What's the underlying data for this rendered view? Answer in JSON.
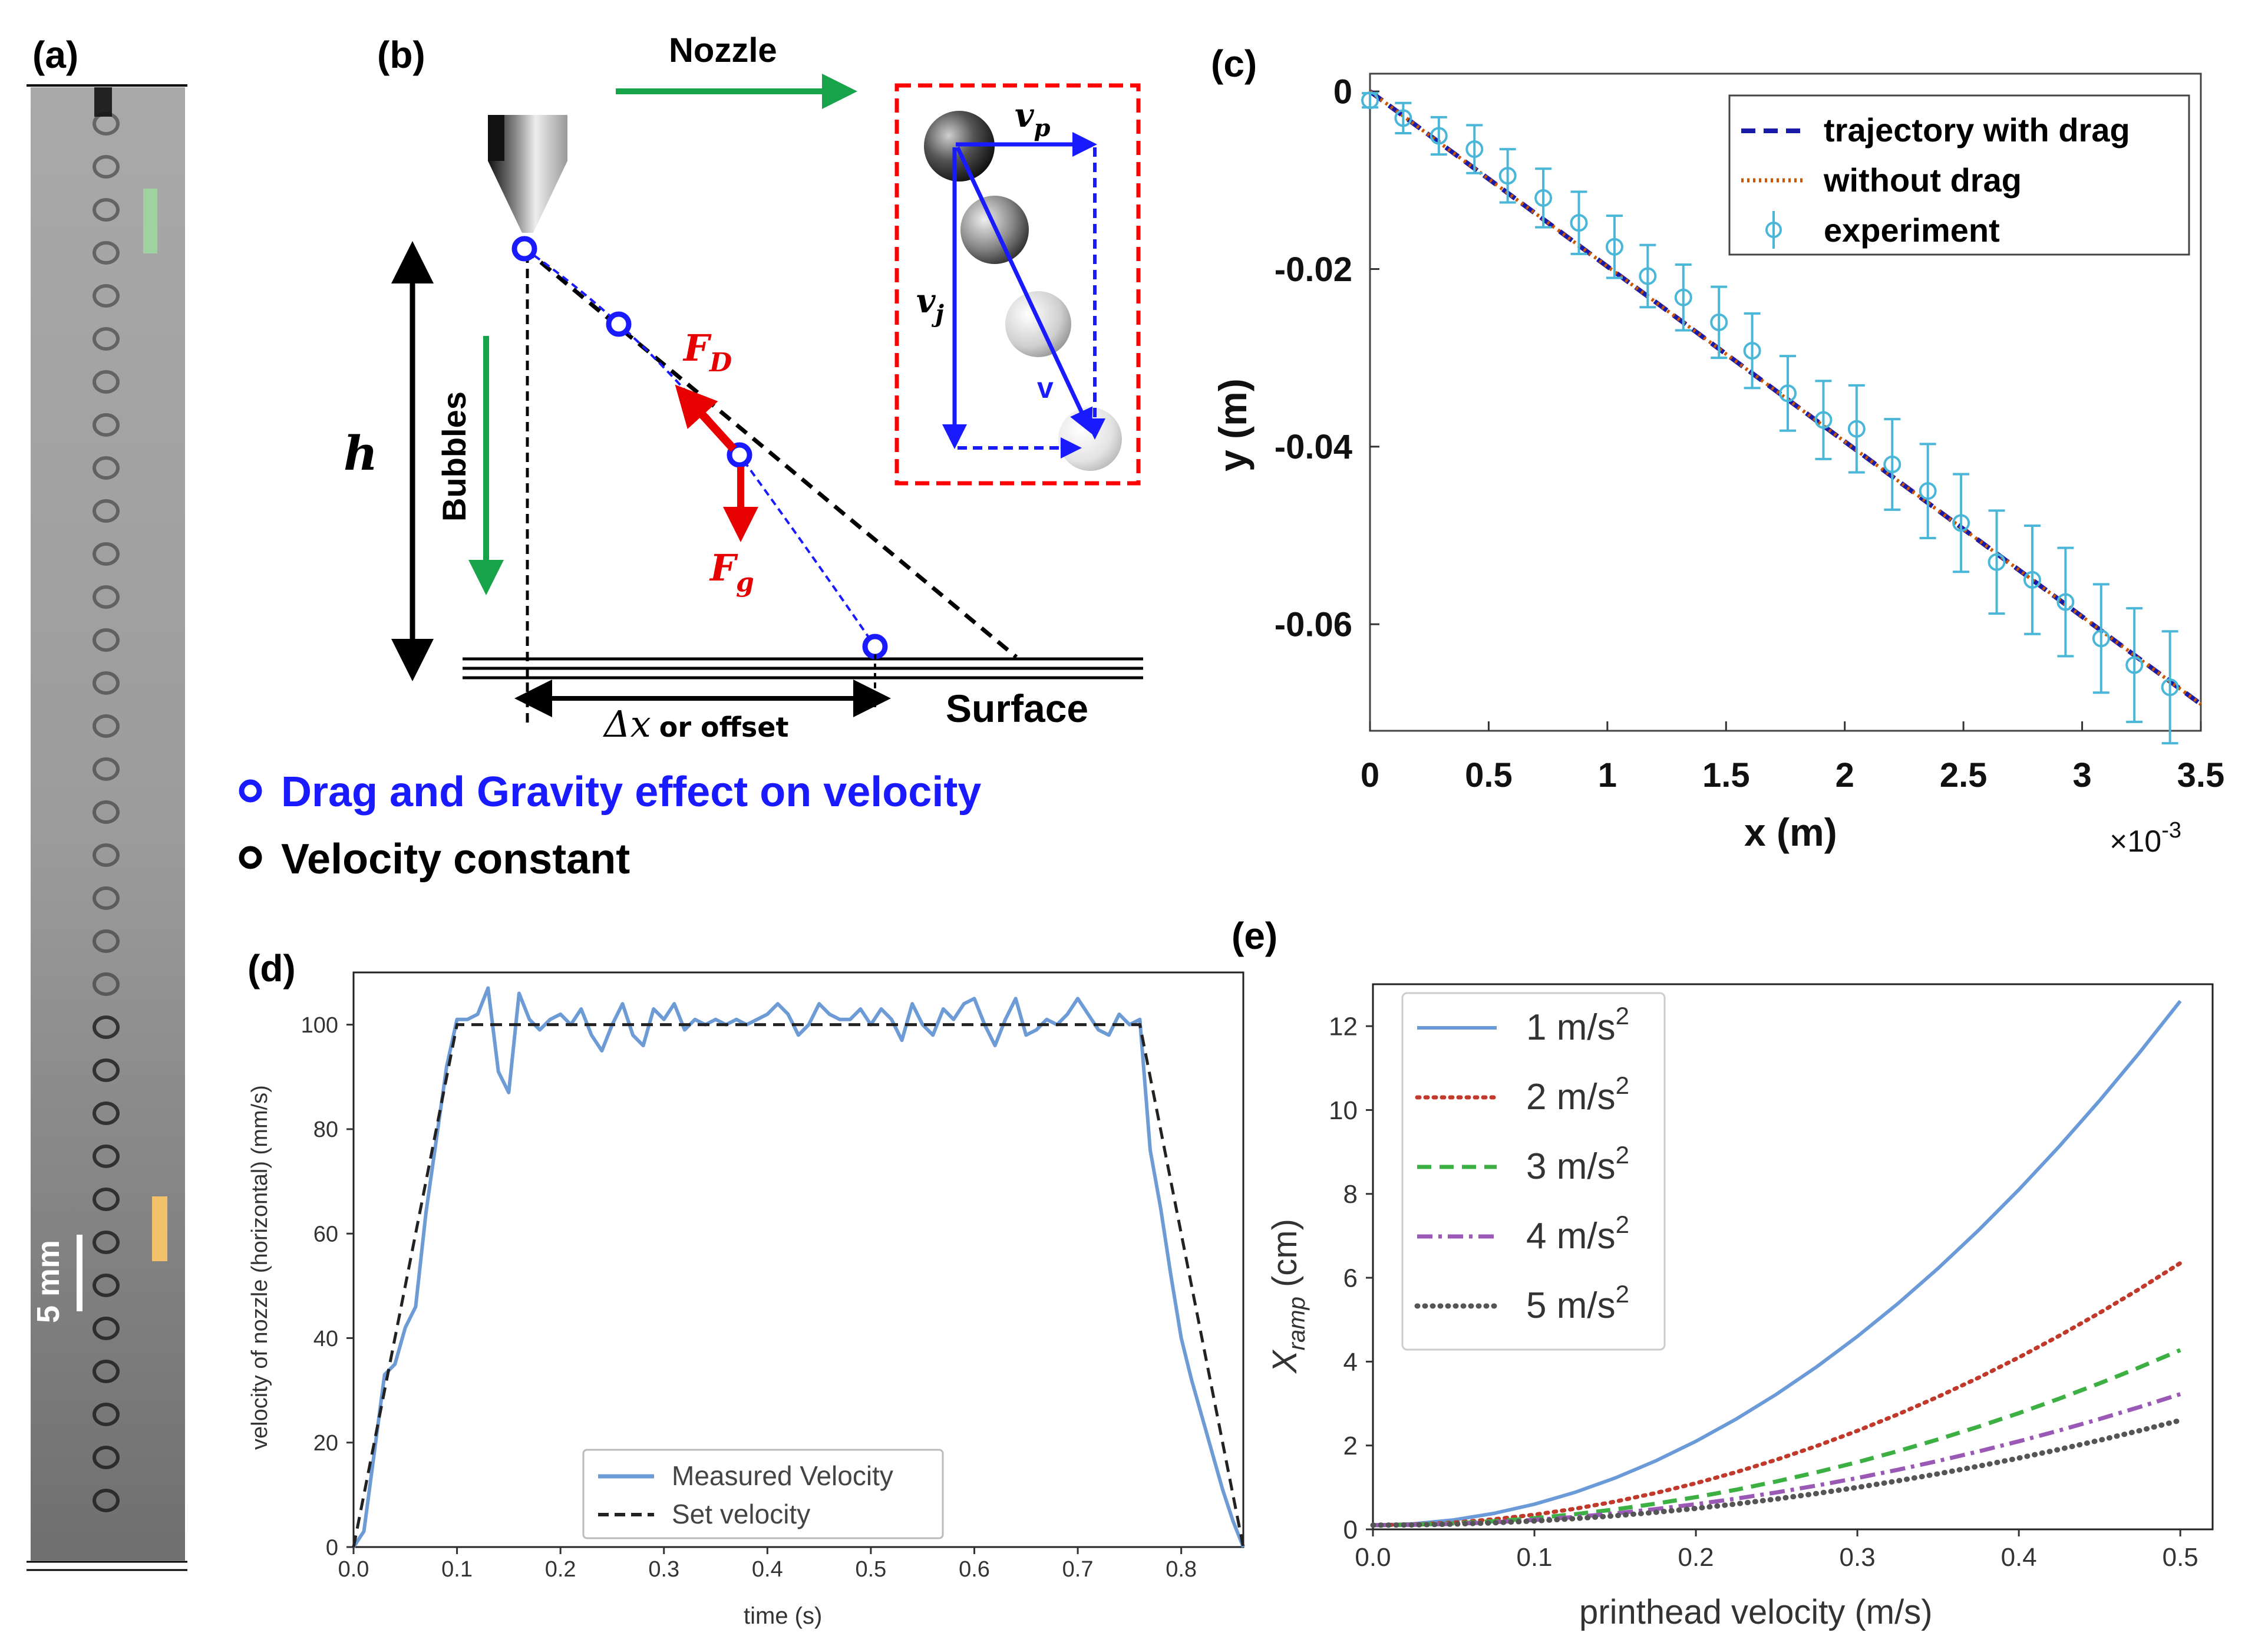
{
  "figure": {
    "panel_labels": [
      "(a)",
      "(b)",
      "(c)",
      "(d)",
      "(e)"
    ]
  },
  "panel_a": {
    "scale_bar_label": "5 mm",
    "bubble_count": 33,
    "colors": {
      "marker_green": "#9fd29f",
      "marker_orange": "#f2c16b",
      "background_gray": "#9c9c9c"
    }
  },
  "panel_b": {
    "nozzle_label": "Nozzle",
    "bubbles_label": "Bubbles",
    "height_label": "h",
    "drag_force_label": "F",
    "drag_force_sub": "D",
    "gravity_force_label": "F",
    "gravity_force_sub": "g",
    "offset_label": "Δx",
    "offset_suffix": "or offset",
    "surface_label": "Surface",
    "vp_label": "v",
    "vp_sub": "p",
    "vj_label": "v",
    "vj_sub": "j",
    "v_label": "v",
    "legend_drag_gravity": "Drag and Gravity effect on velocity",
    "legend_constant": "Velocity constant",
    "colors": {
      "blue": "#1a1aff",
      "red": "#e60000",
      "green": "#16a34a",
      "dashed_red": "#ff0000"
    }
  },
  "chart_data": [
    {
      "id": "c",
      "type": "line",
      "xlabel": "x (m)",
      "ylabel": "y (m)",
      "x_multiplier_label": "×10",
      "x_multiplier_exp": "-3",
      "xlim": [
        0,
        3.5
      ],
      "ylim": [
        -0.072,
        0.002
      ],
      "xticks": [
        0,
        0.5,
        1,
        1.5,
        2,
        2.5,
        3,
        3.5
      ],
      "xtick_labels": [
        "0",
        "0.5",
        "1",
        "1.5",
        "2",
        "2.5",
        "3",
        "3.5"
      ],
      "yticks": [
        0,
        -0.02,
        -0.04,
        -0.06
      ],
      "ytick_labels": [
        "0",
        "-0.02",
        "-0.04",
        "-0.06"
      ],
      "legend": [
        "trajectory with drag",
        "without drag",
        "experiment"
      ],
      "series": [
        {
          "name": "trajectory with drag",
          "style": "dashed",
          "color": "#1a1aa8",
          "x": [
            0,
            3.5
          ],
          "y": [
            0,
            -0.069
          ]
        },
        {
          "name": "without drag",
          "style": "dotted",
          "color": "#cc5500",
          "x": [
            0,
            3.5
          ],
          "y": [
            0,
            -0.069
          ]
        },
        {
          "name": "experiment",
          "style": "errorbar",
          "color": "#4ab6d8",
          "x": [
            0,
            0.14,
            0.29,
            0.44,
            0.58,
            0.73,
            0.88,
            1.03,
            1.17,
            1.32,
            1.47,
            1.61,
            1.76,
            1.91,
            2.05,
            2.2,
            2.35,
            2.49,
            2.64,
            2.79,
            2.93,
            3.08,
            3.22,
            3.37
          ],
          "y": [
            -0.001,
            -0.003,
            -0.005,
            -0.0065,
            -0.0095,
            -0.012,
            -0.0148,
            -0.0175,
            -0.0208,
            -0.0232,
            -0.026,
            -0.0292,
            -0.034,
            -0.037,
            -0.038,
            -0.042,
            -0.045,
            -0.0486,
            -0.053,
            -0.055,
            -0.0575,
            -0.0616,
            -0.0646,
            -0.0671
          ],
          "err": [
            0.0008,
            0.0017,
            0.0021,
            0.0027,
            0.003,
            0.0033,
            0.0035,
            0.0035,
            0.0035,
            0.0037,
            0.004,
            0.0042,
            0.0042,
            0.0044,
            0.0049,
            0.0051,
            0.0053,
            0.0055,
            0.0058,
            0.0061,
            0.0061,
            0.0061,
            0.0064,
            0.0063
          ]
        }
      ]
    },
    {
      "id": "d",
      "type": "line",
      "xlabel": "time (s)",
      "ylabel": "velocity of nozzle (horizontal) (mm/s)",
      "xlim": [
        0,
        0.86
      ],
      "ylim": [
        0,
        110
      ],
      "xticks": [
        0,
        0.1,
        0.2,
        0.3,
        0.4,
        0.5,
        0.6,
        0.7,
        0.8
      ],
      "xtick_labels": [
        "0.0",
        "0.1",
        "0.2",
        "0.3",
        "0.4",
        "0.5",
        "0.6",
        "0.7",
        "0.8"
      ],
      "yticks": [
        0,
        20,
        40,
        60,
        80,
        100
      ],
      "ytick_labels": [
        "0",
        "20",
        "40",
        "60",
        "80",
        "100"
      ],
      "legend": [
        "Measured Velocity",
        "Set velocity"
      ],
      "series": [
        {
          "name": "Measured Velocity",
          "style": "solid",
          "color": "#6d9bd6",
          "x": [
            0,
            0.01,
            0.02,
            0.03,
            0.04,
            0.05,
            0.06,
            0.07,
            0.08,
            0.09,
            0.1,
            0.11,
            0.12,
            0.13,
            0.14,
            0.15,
            0.16,
            0.17,
            0.18,
            0.19,
            0.2,
            0.21,
            0.22,
            0.23,
            0.24,
            0.25,
            0.26,
            0.27,
            0.28,
            0.29,
            0.3,
            0.31,
            0.32,
            0.33,
            0.34,
            0.35,
            0.36,
            0.37,
            0.38,
            0.39,
            0.4,
            0.41,
            0.42,
            0.43,
            0.44,
            0.45,
            0.46,
            0.47,
            0.48,
            0.49,
            0.5,
            0.51,
            0.52,
            0.53,
            0.54,
            0.55,
            0.56,
            0.57,
            0.58,
            0.59,
            0.6,
            0.61,
            0.62,
            0.63,
            0.64,
            0.65,
            0.66,
            0.67,
            0.68,
            0.69,
            0.7,
            0.71,
            0.72,
            0.73,
            0.74,
            0.75,
            0.76,
            0.77,
            0.78,
            0.79,
            0.8,
            0.81,
            0.82,
            0.83,
            0.84,
            0.85,
            0.86
          ],
          "y": [
            0,
            3,
            18,
            33,
            35,
            42,
            46,
            64,
            78,
            92,
            101,
            101,
            102,
            107,
            91,
            87,
            106,
            101,
            99,
            101,
            102,
            100,
            103,
            98,
            95,
            100,
            104,
            98,
            96,
            103,
            101,
            104,
            99,
            101,
            100,
            101,
            100,
            101,
            100,
            101,
            102,
            104,
            102,
            98,
            100,
            104,
            102,
            101,
            101,
            103,
            100,
            103,
            101,
            97,
            104,
            100,
            98,
            103,
            101,
            104,
            105,
            100,
            96,
            101,
            105,
            98,
            99,
            101,
            100,
            102,
            105,
            102,
            99,
            98,
            102,
            100,
            101,
            76,
            65,
            52,
            40,
            32,
            25,
            18,
            11,
            5,
            0
          ]
        },
        {
          "name": "Set velocity",
          "style": "dashed",
          "color": "#222222",
          "x": [
            0,
            0.1,
            0.76,
            0.86
          ],
          "y": [
            0,
            100,
            100,
            0
          ]
        }
      ]
    },
    {
      "id": "e",
      "type": "line",
      "xlabel": "printhead velocity (m/s)",
      "ylabel": "X",
      "ylabel_sub": "ramp",
      "ylabel_unit": " (cm)",
      "xlim": [
        0,
        0.52
      ],
      "ylim": [
        0,
        13
      ],
      "xticks": [
        0,
        0.1,
        0.2,
        0.3,
        0.4,
        0.5
      ],
      "xtick_labels": [
        "0.0",
        "0.1",
        "0.2",
        "0.3",
        "0.4",
        "0.5"
      ],
      "yticks": [
        0,
        2,
        4,
        6,
        8,
        10,
        12
      ],
      "ytick_labels": [
        "0",
        "2",
        "4",
        "6",
        "8",
        "10",
        "12"
      ],
      "legend": [
        "1 m/s",
        "2 m/s",
        "3 m/s",
        "4 m/s",
        "5 m/s"
      ],
      "legend_exp": "2",
      "series": [
        {
          "name": "1 m/s²",
          "style": "solid",
          "color": "#6a9bd8",
          "coef": 50.0
        },
        {
          "name": "2 m/s²",
          "style": "dotted",
          "color": "#c0392b",
          "coef": 25.0
        },
        {
          "name": "3 m/s²",
          "style": "dashed",
          "color": "#3cb043",
          "coef": 16.7
        },
        {
          "name": "4 m/s²",
          "style": "dashdot",
          "color": "#9b59b6",
          "coef": 12.5
        },
        {
          "name": "5 m/s²",
          "style": "dots",
          "color": "#555555",
          "coef": 10.0
        }
      ],
      "curve_x": [
        0,
        0.025,
        0.05,
        0.075,
        0.1,
        0.125,
        0.15,
        0.175,
        0.2,
        0.225,
        0.25,
        0.275,
        0.3,
        0.325,
        0.35,
        0.375,
        0.4,
        0.425,
        0.45,
        0.475,
        0.5
      ]
    }
  ]
}
